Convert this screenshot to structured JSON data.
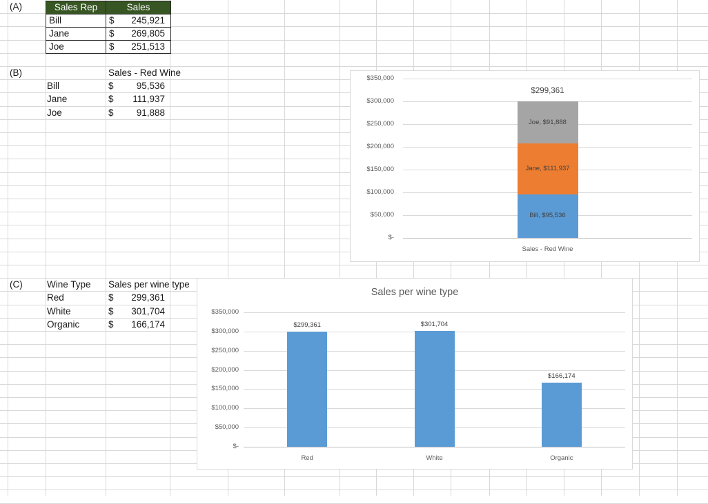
{
  "sheet": {
    "section_a": {
      "label": "(A)",
      "headers": [
        "Sales Rep",
        "Sales"
      ],
      "rows": [
        {
          "name": "Bill",
          "currency": "$",
          "amount": "245,921"
        },
        {
          "name": "Jane",
          "currency": "$",
          "amount": "269,805"
        },
        {
          "name": "Joe",
          "currency": "$",
          "amount": "251,513"
        }
      ]
    },
    "section_b": {
      "label": "(B)",
      "title": "Sales - Red Wine",
      "rows": [
        {
          "name": "Bill",
          "currency": "$",
          "amount": "95,536"
        },
        {
          "name": "Jane",
          "currency": "$",
          "amount": "111,937"
        },
        {
          "name": "Joe",
          "currency": "$",
          "amount": "91,888"
        }
      ]
    },
    "section_c": {
      "label": "(C)",
      "headers": [
        "Wine Type",
        "Sales per wine type"
      ],
      "rows": [
        {
          "name": "Red",
          "currency": "$",
          "amount": "299,361"
        },
        {
          "name": "White",
          "currency": "$",
          "amount": "301,704"
        },
        {
          "name": "Organic",
          "currency": "$",
          "amount": "166,174"
        }
      ]
    }
  },
  "colors": {
    "table_header_bg": "#375623",
    "table_header_text": "#FFFFFF",
    "series_blue": "#5B9BD5",
    "series_orange": "#ED7D31",
    "series_gray": "#A5A5A5",
    "sheet_gridline": "#D8D8D8",
    "chart_gridline": "#D9D9D9",
    "axis_text": "#595959",
    "data_label_text": "#404040"
  },
  "chart_data": [
    {
      "type": "bar",
      "subtype": "stacked-column",
      "title": "",
      "categories": [
        "Sales - Red Wine"
      ],
      "series": [
        {
          "name": "Bill",
          "values": [
            95536
          ],
          "color": "#5B9BD5",
          "data_label": "Bill,  $95,536"
        },
        {
          "name": "Jane",
          "values": [
            111937
          ],
          "color": "#ED7D31",
          "data_label": "Jane,  $111,937"
        },
        {
          "name": "Joe",
          "values": [
            91888
          ],
          "color": "#A5A5A5",
          "data_label": "Joe,  $91,888"
        }
      ],
      "total_label": "$299,361",
      "ylim": [
        0,
        350000
      ],
      "ytick_step": 50000,
      "yticks": [
        "$350,000",
        "$300,000",
        "$250,000",
        "$200,000",
        "$150,000",
        "$100,000",
        "$50,000",
        "$-"
      ],
      "grid": "on",
      "legend": "none"
    },
    {
      "type": "bar",
      "title": "Sales per wine type",
      "categories": [
        "Red",
        "White",
        "Organic"
      ],
      "values": [
        299361,
        301704,
        166174
      ],
      "value_labels": [
        "$299,361",
        "$301,704",
        "$166,174"
      ],
      "bar_color": "#5B9BD5",
      "ylim": [
        0,
        350000
      ],
      "ytick_step": 50000,
      "yticks": [
        "$350,000",
        "$300,000",
        "$250,000",
        "$200,000",
        "$150,000",
        "$100,000",
        "$50,000",
        "$-"
      ],
      "grid": "on",
      "legend": "none"
    }
  ]
}
